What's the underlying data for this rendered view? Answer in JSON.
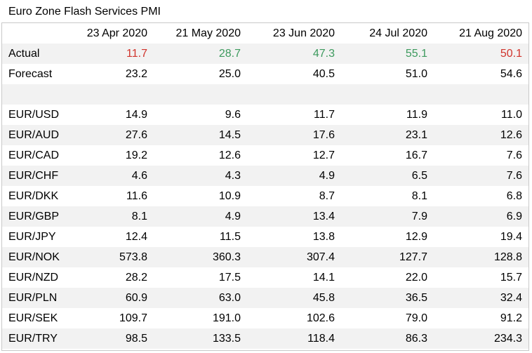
{
  "title": "Euro Zone Flash Services PMI",
  "headers": [
    "",
    "23 Apr 2020",
    "21 May 2020",
    "23 Jun 2020",
    "24 Jul 2020",
    "21 Aug 2020"
  ],
  "colors": {
    "red": "#d0342c",
    "green": "#3d9a5e",
    "shade": "#f2f2f2"
  },
  "actual": {
    "label": "Actual",
    "values": [
      "11.7",
      "28.7",
      "47.3",
      "55.1",
      "50.1"
    ],
    "value_colors": [
      "red",
      "green",
      "green",
      "green",
      "red"
    ]
  },
  "forecast": {
    "label": "Forecast",
    "values": [
      "23.2",
      "25.0",
      "40.5",
      "51.0",
      "54.6"
    ]
  },
  "pairs": [
    {
      "label": "EUR/USD",
      "values": [
        "14.9",
        "9.6",
        "11.7",
        "11.9",
        "11.0"
      ]
    },
    {
      "label": "EUR/AUD",
      "values": [
        "27.6",
        "14.5",
        "17.6",
        "23.1",
        "12.6"
      ]
    },
    {
      "label": "EUR/CAD",
      "values": [
        "19.2",
        "12.6",
        "12.7",
        "16.7",
        "7.6"
      ]
    },
    {
      "label": "EUR/CHF",
      "values": [
        "4.6",
        "4.3",
        "4.9",
        "6.5",
        "7.6"
      ]
    },
    {
      "label": "EUR/DKK",
      "values": [
        "11.6",
        "10.9",
        "8.7",
        "8.1",
        "6.8"
      ]
    },
    {
      "label": "EUR/GBP",
      "values": [
        "8.1",
        "4.9",
        "13.4",
        "7.9",
        "6.9"
      ]
    },
    {
      "label": "EUR/JPY",
      "values": [
        "12.4",
        "11.5",
        "13.8",
        "12.9",
        "19.4"
      ]
    },
    {
      "label": "EUR/NOK",
      "values": [
        "573.8",
        "360.3",
        "307.4",
        "127.7",
        "128.8"
      ]
    },
    {
      "label": "EUR/NZD",
      "values": [
        "28.2",
        "17.5",
        "14.1",
        "22.0",
        "15.7"
      ]
    },
    {
      "label": "EUR/PLN",
      "values": [
        "60.9",
        "63.0",
        "45.8",
        "36.5",
        "32.4"
      ]
    },
    {
      "label": "EUR/SEK",
      "values": [
        "109.7",
        "191.0",
        "102.6",
        "79.0",
        "91.2"
      ]
    },
    {
      "label": "EUR/TRY",
      "values": [
        "98.5",
        "133.5",
        "118.4",
        "86.3",
        "234.3"
      ]
    }
  ]
}
